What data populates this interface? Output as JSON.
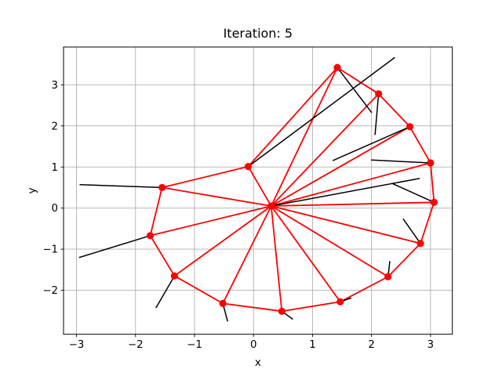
{
  "figure": {
    "title": "Iteration: 5"
  },
  "chart_data": {
    "type": "line",
    "title": "Iteration: 5",
    "xlabel": "x",
    "ylabel": "y",
    "xlim": [
      -3.22,
      3.37
    ],
    "ylim": [
      -3.07,
      3.92
    ],
    "xticks": [
      -3,
      -2,
      -1,
      0,
      1,
      2,
      3
    ],
    "yticks": [
      -2,
      -1,
      0,
      1,
      2,
      3
    ],
    "grid": true,
    "legend": null,
    "colors": {
      "ring": "#ff0000",
      "marker": "#ff0000",
      "heading_segment": "#000000",
      "grid": "#b0b0b0",
      "spine": "#000000",
      "background": "#ffffff"
    },
    "hub": [
      0.3,
      0.05
    ],
    "ring_nodes": [
      [
        -0.09,
        1.01
      ],
      [
        1.42,
        3.42
      ],
      [
        2.12,
        2.78
      ],
      [
        2.65,
        1.98
      ],
      [
        3.0,
        1.1
      ],
      [
        3.06,
        0.14
      ],
      [
        2.83,
        -0.86
      ],
      [
        2.28,
        -1.67
      ],
      [
        1.47,
        -2.28
      ],
      [
        0.48,
        -2.51
      ],
      [
        -0.52,
        -2.32
      ],
      [
        -1.34,
        -1.65
      ],
      [
        -1.75,
        -0.67
      ],
      [
        -1.55,
        0.5
      ]
    ],
    "connections": {
      "ring_closed": true,
      "spokes_from_hub_to_every_node": true
    },
    "black_segments": [
      [
        -0.09,
        1.01,
        2.39,
        3.66
      ],
      [
        1.42,
        3.42,
        2.0,
        2.33
      ],
      [
        2.12,
        2.78,
        2.06,
        1.79
      ],
      [
        2.65,
        1.98,
        1.35,
        1.16
      ],
      [
        3.0,
        1.1,
        2.0,
        1.17
      ],
      [
        3.06,
        0.14,
        2.35,
        0.6
      ],
      [
        2.83,
        -0.86,
        2.54,
        -0.27
      ],
      [
        2.28,
        -1.67,
        2.31,
        -1.3
      ],
      [
        1.47,
        -2.28,
        1.65,
        -2.19
      ],
      [
        0.48,
        -2.51,
        0.66,
        -2.7
      ],
      [
        -0.52,
        -2.32,
        -0.44,
        -2.75
      ],
      [
        -1.34,
        -1.65,
        -1.65,
        -2.42
      ],
      [
        -1.75,
        -0.67,
        -2.95,
        -1.2
      ],
      [
        -1.55,
        0.5,
        -2.94,
        0.57
      ],
      [
        0.3,
        0.05,
        2.81,
        0.72
      ]
    ]
  }
}
